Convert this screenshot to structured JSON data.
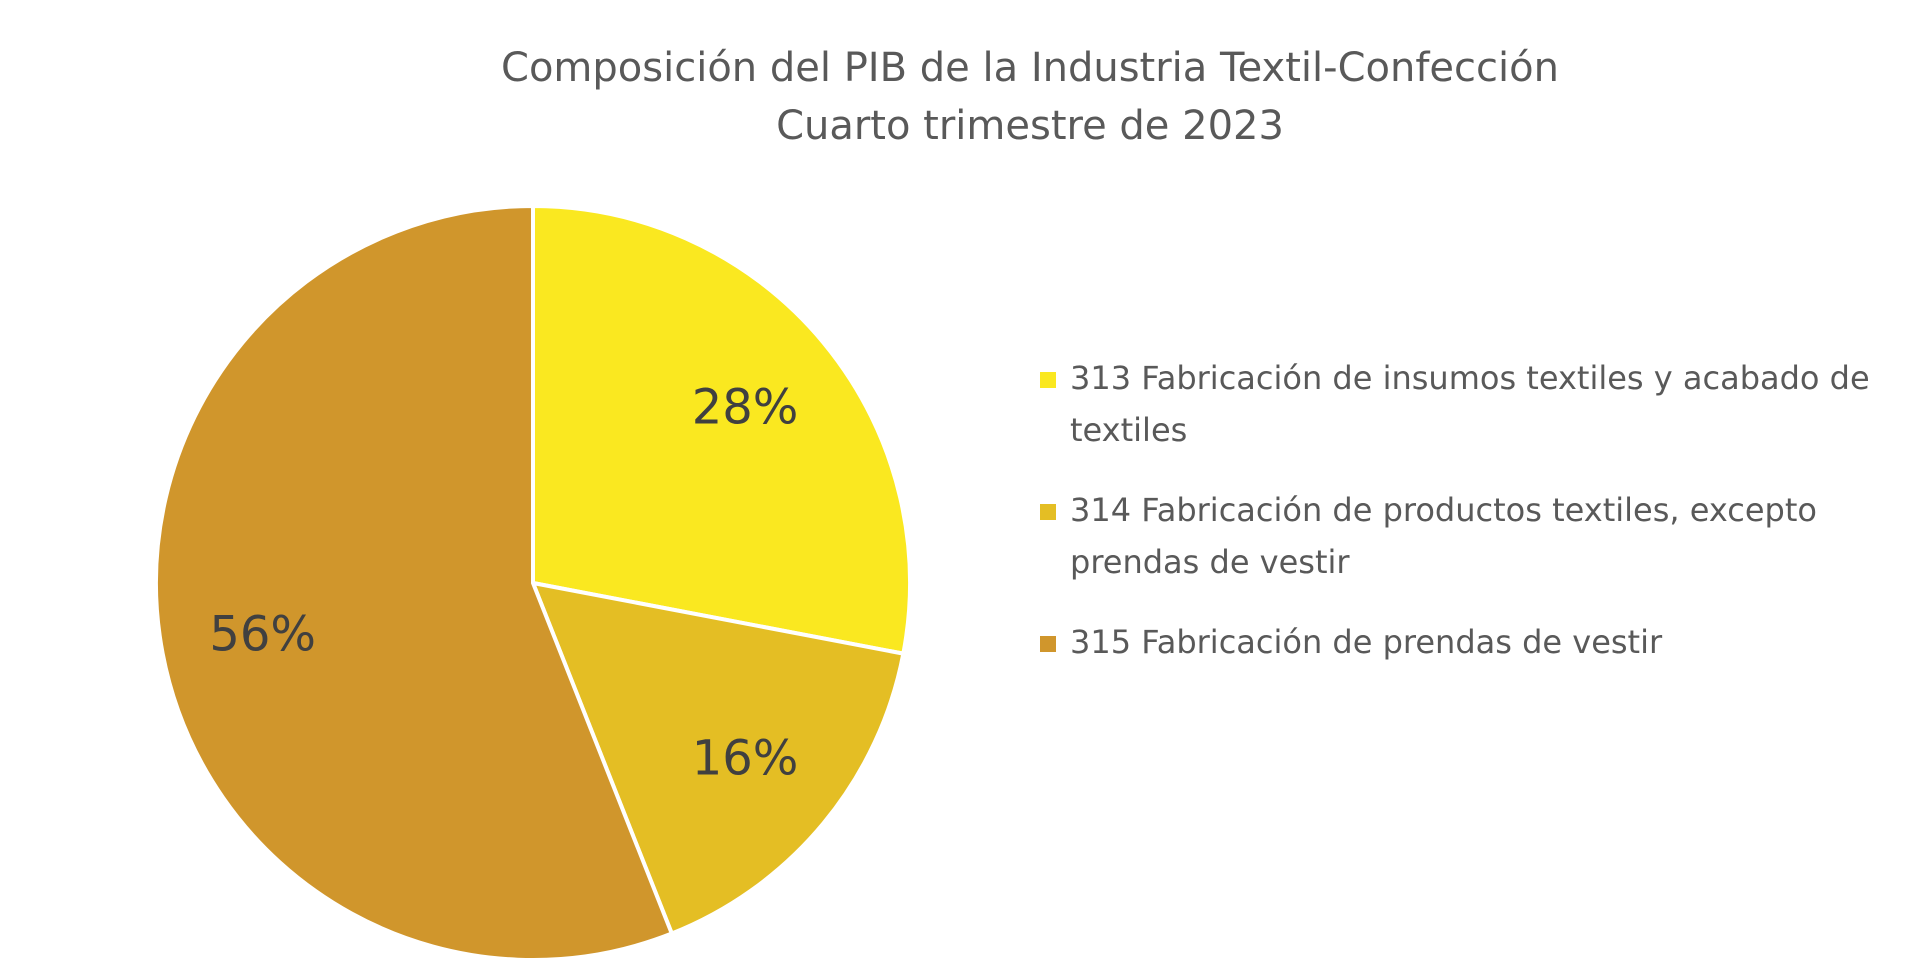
{
  "chart_data": {
    "type": "pie",
    "title": "Composición del PIB de la Industria Textil-Confección",
    "subtitle": "Cuarto trimestre de 2023",
    "legend_position": "right",
    "slices": [
      {
        "label": "313 Fabricación de insumos textiles y acabado de textiles",
        "value": 28,
        "display": "28%",
        "color": "#FAE820"
      },
      {
        "label": " 314 Fabricación de productos textiles, excepto prendas de vestir",
        "value": 16,
        "display": "16%",
        "color": "#E4BE24"
      },
      {
        "label": " 315 Fabricación de prendas de vestir",
        "value": 56,
        "display": "56%",
        "color": "#D0962C"
      }
    ]
  }
}
